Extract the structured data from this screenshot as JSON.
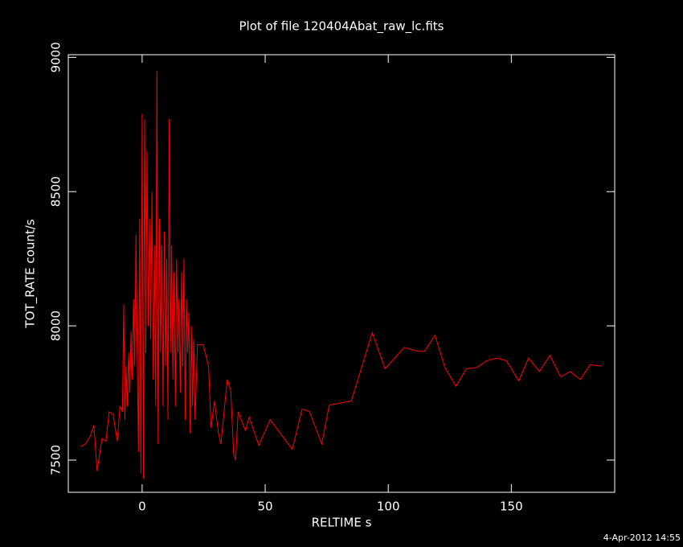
{
  "chart_data": {
    "type": "line",
    "title": "Plot of file 120404Abat_raw_lc.fits",
    "x_label": "RELTIME  s",
    "y_label": "TOT_RATE  count/s",
    "annotation": "4-Apr-2012 14:55",
    "color": "#ff0000",
    "xlim": [
      -30,
      192
    ],
    "xticks": [
      0,
      50,
      100,
      150
    ],
    "ylim": [
      7380,
      9010
    ],
    "yticks": [
      7500,
      8000,
      8500,
      9000
    ],
    "x": [
      -25,
      -23,
      -21,
      -19.6,
      -18.3,
      -16.3,
      -14.7,
      -13.4,
      -11.8,
      -10.1,
      -9,
      -8,
      -7.5,
      -7,
      -6.5,
      -6,
      -5.5,
      -5,
      -4.5,
      -4,
      -3.5,
      -3,
      -2.5,
      -2,
      -1.5,
      -1,
      -0.5,
      0,
      0.5,
      1,
      1.5,
      2,
      2.5,
      3,
      3.5,
      4,
      4.5,
      5,
      5.5,
      6,
      6.5,
      7,
      7.5,
      8,
      8.5,
      9,
      9.5,
      10,
      10.5,
      11,
      11.5,
      12,
      12.5,
      13,
      13.5,
      14,
      14.5,
      15,
      15.5,
      16,
      16.5,
      17,
      17.5,
      18,
      18.5,
      19,
      19.5,
      20,
      20.5,
      21,
      21.5,
      22.5,
      24.8,
      27,
      28,
      29.4,
      31,
      32,
      33.3,
      34.6,
      36,
      37.2,
      38,
      39,
      42,
      43.5,
      47.4,
      52,
      61,
      65,
      68,
      73,
      76,
      85,
      93.5,
      98.7,
      106.5,
      112,
      114.7,
      119,
      123,
      127.5,
      131.7,
      136,
      140,
      144,
      148,
      153,
      157,
      161.4,
      165.7,
      170,
      173.9,
      178,
      182,
      186.6
    ],
    "values": [
      7550,
      7560,
      7590,
      7630,
      7460,
      7580,
      7570,
      7680,
      7670,
      7570,
      7700,
      7680,
      8080,
      7650,
      7850,
      7700,
      7900,
      7750,
      7980,
      7800,
      8100,
      7850,
      8340,
      7900,
      7530,
      8400,
      7450,
      8790,
      7430,
      8770,
      7900,
      8650,
      8000,
      8400,
      7950,
      8500,
      7800,
      8300,
      7700,
      8950,
      7560,
      8400,
      7900,
      8300,
      7700,
      8350,
      7850,
      8250,
      7650,
      8770,
      7900,
      8300,
      7800,
      8200,
      7700,
      8250,
      7900,
      8100,
      7750,
      8200,
      7850,
      8250,
      7650,
      8100,
      7900,
      8050,
      7600,
      8000,
      7700,
      7950,
      7650,
      7930,
      7930,
      7850,
      7620,
      7720,
      7600,
      7560,
      7680,
      7800,
      7760,
      7520,
      7500,
      7680,
      7610,
      7660,
      7555,
      7650,
      7540,
      7690,
      7680,
      7560,
      7705,
      7720,
      7975,
      7840,
      7920,
      7905,
      7905,
      7965,
      7845,
      7775,
      7840,
      7845,
      7870,
      7880,
      7870,
      7795,
      7880,
      7830,
      7890,
      7810,
      7830,
      7800,
      7855,
      7850
    ]
  }
}
